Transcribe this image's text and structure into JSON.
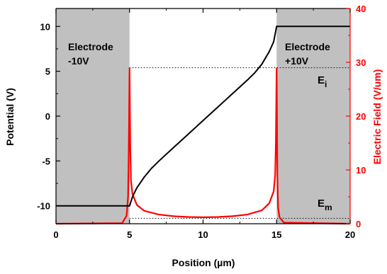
{
  "chart_data": {
    "type": "line",
    "xlabel": "Position (µm)",
    "ylabel_left": "Potential (V)",
    "ylabel_right": "Electric Field (V/um)",
    "xlim": [
      0,
      20
    ],
    "ylim_left": [
      -12,
      12
    ],
    "ylim_right": [
      0,
      40
    ],
    "x_ticks": [
      0,
      5,
      10,
      15,
      20
    ],
    "y_left_ticks": [
      -10,
      -5,
      0,
      5,
      10
    ],
    "y_right_ticks": [
      0,
      10,
      20,
      30,
      40
    ],
    "colors": {
      "potential": "#000000",
      "field": "#ff0000",
      "electrode": "#c0c0c0"
    },
    "regions": [
      {
        "label_line1": "Electrode",
        "label_line2": "-10V",
        "x_start": 0,
        "x_end": 5
      },
      {
        "label_line1": "Electrode",
        "label_line2": "+10V",
        "x_start": 15,
        "x_end": 20
      }
    ],
    "series": [
      {
        "axis": "left",
        "color": "#000000",
        "x": [
          0,
          5,
          5.2,
          5.5,
          6,
          6.5,
          7,
          7.5,
          8,
          8.5,
          9,
          9.5,
          10,
          10.5,
          11,
          11.5,
          12,
          12.5,
          13,
          13.5,
          14,
          14.5,
          14.8,
          15,
          20
        ],
        "y": [
          -10,
          -10,
          -9.0,
          -8.0,
          -6.8,
          -5.8,
          -5.0,
          -4.25,
          -3.5,
          -2.75,
          -2.0,
          -1.25,
          -0.5,
          0.25,
          1.0,
          1.75,
          2.5,
          3.25,
          4.0,
          4.8,
          5.8,
          7.2,
          8.3,
          10,
          10
        ]
      },
      {
        "axis": "right",
        "color": "#ff0000",
        "x": [
          0,
          4.5,
          4.8,
          4.9,
          4.95,
          5.0,
          5.05,
          5.1,
          5.2,
          5.5,
          6,
          7,
          8,
          9,
          10,
          11,
          12,
          13,
          14,
          14.5,
          14.8,
          14.9,
          14.95,
          15.0,
          15.05,
          15.1,
          15.2,
          15.5,
          20
        ],
        "y": [
          0,
          0.1,
          1.5,
          5,
          14,
          29,
          14,
          8,
          5.5,
          3.5,
          2.4,
          1.7,
          1.4,
          1.25,
          1.2,
          1.25,
          1.4,
          1.7,
          2.5,
          3.8,
          6,
          9,
          15,
          29,
          9,
          3,
          1.2,
          0.2,
          0
        ]
      }
    ],
    "reference_lines": [
      {
        "axis": "right",
        "y": 29,
        "x_start": 5,
        "x_end": 20,
        "style": "dotted"
      },
      {
        "axis": "right",
        "y": 1.0,
        "x_start": 5,
        "x_end": 20,
        "style": "dotted"
      }
    ],
    "annotations": [
      {
        "text": "E",
        "subscript": "i"
      },
      {
        "text": "E",
        "subscript": "m"
      }
    ]
  }
}
